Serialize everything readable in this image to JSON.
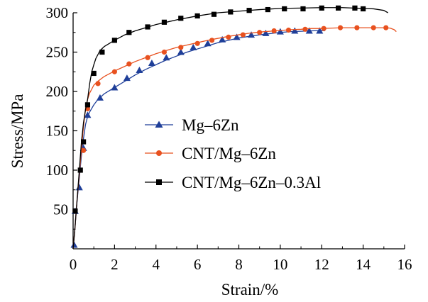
{
  "chart_data": {
    "type": "line",
    "xlabel": "Strain/%",
    "ylabel": "Stress/MPa",
    "xlim": [
      0,
      16
    ],
    "ylim": [
      0,
      300
    ],
    "x_ticks": [
      "0",
      "2",
      "4",
      "6",
      "8",
      "10",
      "12",
      "14",
      "16"
    ],
    "y_ticks": [
      "50",
      "100",
      "150",
      "200",
      "250",
      "300"
    ],
    "grid": false,
    "legend_position": "center-right",
    "series": [
      {
        "name": "Mg–6Zn",
        "color": "#1f3f99",
        "marker": "triangle",
        "curve": [
          [
            0,
            0
          ],
          [
            0.05,
            15
          ],
          [
            0.1,
            30
          ],
          [
            0.15,
            48
          ],
          [
            0.2,
            63
          ],
          [
            0.3,
            90
          ],
          [
            0.4,
            118
          ],
          [
            0.5,
            140
          ],
          [
            0.6,
            158
          ],
          [
            0.7,
            168
          ],
          [
            0.8,
            174
          ],
          [
            1.0,
            183
          ],
          [
            1.2,
            190
          ],
          [
            1.5,
            197
          ],
          [
            2.0,
            205
          ],
          [
            2.5,
            213
          ],
          [
            3.0,
            221
          ],
          [
            3.5,
            228
          ],
          [
            4.0,
            234
          ],
          [
            4.5,
            240
          ],
          [
            5.0,
            245
          ],
          [
            5.5,
            250
          ],
          [
            6.0,
            254
          ],
          [
            6.5,
            258
          ],
          [
            7.0,
            262
          ],
          [
            7.5,
            265
          ],
          [
            8.0,
            268
          ],
          [
            8.5,
            270
          ],
          [
            9.0,
            272
          ],
          [
            9.5,
            273.5
          ],
          [
            10.0,
            275
          ],
          [
            10.5,
            276
          ],
          [
            11.0,
            276.5
          ],
          [
            11.5,
            277
          ],
          [
            12.0,
            277.5
          ],
          [
            12.15,
            277
          ]
        ],
        "markers": [
          [
            0.05,
            5
          ],
          [
            0.1,
            48
          ],
          [
            0.3,
            78
          ],
          [
            0.5,
            128
          ],
          [
            0.7,
            170
          ],
          [
            1.3,
            192
          ],
          [
            2.0,
            205
          ],
          [
            2.6,
            217
          ],
          [
            3.2,
            227
          ],
          [
            3.8,
            236
          ],
          [
            4.5,
            243
          ],
          [
            5.2,
            250
          ],
          [
            5.8,
            256
          ],
          [
            6.5,
            261
          ],
          [
            7.2,
            266
          ],
          [
            7.9,
            269
          ],
          [
            8.6,
            272
          ],
          [
            9.3,
            274
          ],
          [
            10.0,
            276
          ],
          [
            10.7,
            277
          ],
          [
            11.4,
            277
          ],
          [
            11.9,
            277
          ]
        ]
      },
      {
        "name": "CNT/Mg–6Zn",
        "color": "#e8511f",
        "marker": "circle",
        "curve": [
          [
            0,
            0
          ],
          [
            0.05,
            15
          ],
          [
            0.1,
            30
          ],
          [
            0.15,
            48
          ],
          [
            0.2,
            65
          ],
          [
            0.3,
            95
          ],
          [
            0.4,
            126
          ],
          [
            0.5,
            155
          ],
          [
            0.6,
            178
          ],
          [
            0.7,
            190
          ],
          [
            0.8,
            198
          ],
          [
            1.0,
            208
          ],
          [
            1.2,
            213
          ],
          [
            1.5,
            219
          ],
          [
            2.0,
            226
          ],
          [
            2.5,
            232
          ],
          [
            3.0,
            238
          ],
          [
            3.5,
            243
          ],
          [
            4.0,
            248
          ],
          [
            4.5,
            252
          ],
          [
            5.0,
            256
          ],
          [
            5.5,
            259
          ],
          [
            6.0,
            262
          ],
          [
            6.5,
            265
          ],
          [
            7.0,
            267.5
          ],
          [
            7.5,
            270
          ],
          [
            8.0,
            272
          ],
          [
            8.5,
            274
          ],
          [
            9.0,
            275.5
          ],
          [
            9.5,
            276.5
          ],
          [
            10.0,
            277.5
          ],
          [
            10.5,
            278.5
          ],
          [
            11.0,
            279
          ],
          [
            11.5,
            280
          ],
          [
            12.0,
            280
          ],
          [
            12.5,
            280.5
          ],
          [
            13.0,
            281
          ],
          [
            13.5,
            281
          ],
          [
            14.0,
            281
          ],
          [
            14.5,
            281
          ],
          [
            15.0,
            281
          ],
          [
            15.3,
            280.5
          ],
          [
            15.5,
            278.5
          ],
          [
            15.6,
            276
          ]
        ],
        "markers": [
          [
            0.1,
            48
          ],
          [
            0.5,
            125
          ],
          [
            0.7,
            178
          ],
          [
            1.2,
            210
          ],
          [
            2.0,
            225
          ],
          [
            2.7,
            235
          ],
          [
            3.6,
            243
          ],
          [
            4.4,
            250
          ],
          [
            5.2,
            256
          ],
          [
            6.0,
            261
          ],
          [
            6.7,
            265
          ],
          [
            7.5,
            269
          ],
          [
            8.2,
            272
          ],
          [
            9.0,
            275
          ],
          [
            9.7,
            277
          ],
          [
            10.4,
            278
          ],
          [
            11.2,
            279
          ],
          [
            12.1,
            280
          ],
          [
            12.9,
            281
          ],
          [
            13.7,
            281
          ],
          [
            14.5,
            281
          ],
          [
            15.1,
            281
          ]
        ]
      },
      {
        "name": "CNT/Mg–6Zn–0.3Al",
        "color": "#000000",
        "marker": "square",
        "curve": [
          [
            0,
            0
          ],
          [
            0.05,
            15
          ],
          [
            0.1,
            30
          ],
          [
            0.15,
            48
          ],
          [
            0.2,
            65
          ],
          [
            0.3,
            100
          ],
          [
            0.4,
            135
          ],
          [
            0.5,
            160
          ],
          [
            0.6,
            177
          ],
          [
            0.7,
            190
          ],
          [
            0.8,
            210
          ],
          [
            0.9,
            225
          ],
          [
            1.0,
            234
          ],
          [
            1.1,
            242
          ],
          [
            1.3,
            252
          ],
          [
            1.5,
            257
          ],
          [
            2.0,
            265
          ],
          [
            2.5,
            272
          ],
          [
            3.0,
            277
          ],
          [
            3.5,
            281
          ],
          [
            4.0,
            285
          ],
          [
            4.5,
            288
          ],
          [
            5.0,
            291
          ],
          [
            6.0,
            296
          ],
          [
            7.0,
            300
          ],
          [
            8.0,
            302
          ],
          [
            9.0,
            304
          ],
          [
            10.0,
            305.5
          ],
          [
            11.0,
            306
          ],
          [
            12.0,
            306.5
          ],
          [
            13.0,
            306.5
          ],
          [
            14.0,
            305.5
          ],
          [
            14.5,
            305
          ],
          [
            15.0,
            303
          ],
          [
            15.2,
            300
          ]
        ],
        "markers": [
          [
            0.1,
            48
          ],
          [
            0.35,
            100
          ],
          [
            0.5,
            136
          ],
          [
            0.7,
            183
          ],
          [
            1.0,
            223
          ],
          [
            1.4,
            250
          ],
          [
            2.0,
            265
          ],
          [
            2.7,
            275
          ],
          [
            3.6,
            282
          ],
          [
            4.4,
            288
          ],
          [
            5.2,
            293
          ],
          [
            6.0,
            296
          ],
          [
            6.8,
            298
          ],
          [
            7.6,
            301
          ],
          [
            8.5,
            303
          ],
          [
            9.4,
            304
          ],
          [
            10.2,
            305
          ],
          [
            11.1,
            305
          ],
          [
            12.0,
            306
          ],
          [
            12.8,
            306
          ],
          [
            13.6,
            306
          ],
          [
            14.0,
            305
          ]
        ]
      }
    ]
  }
}
